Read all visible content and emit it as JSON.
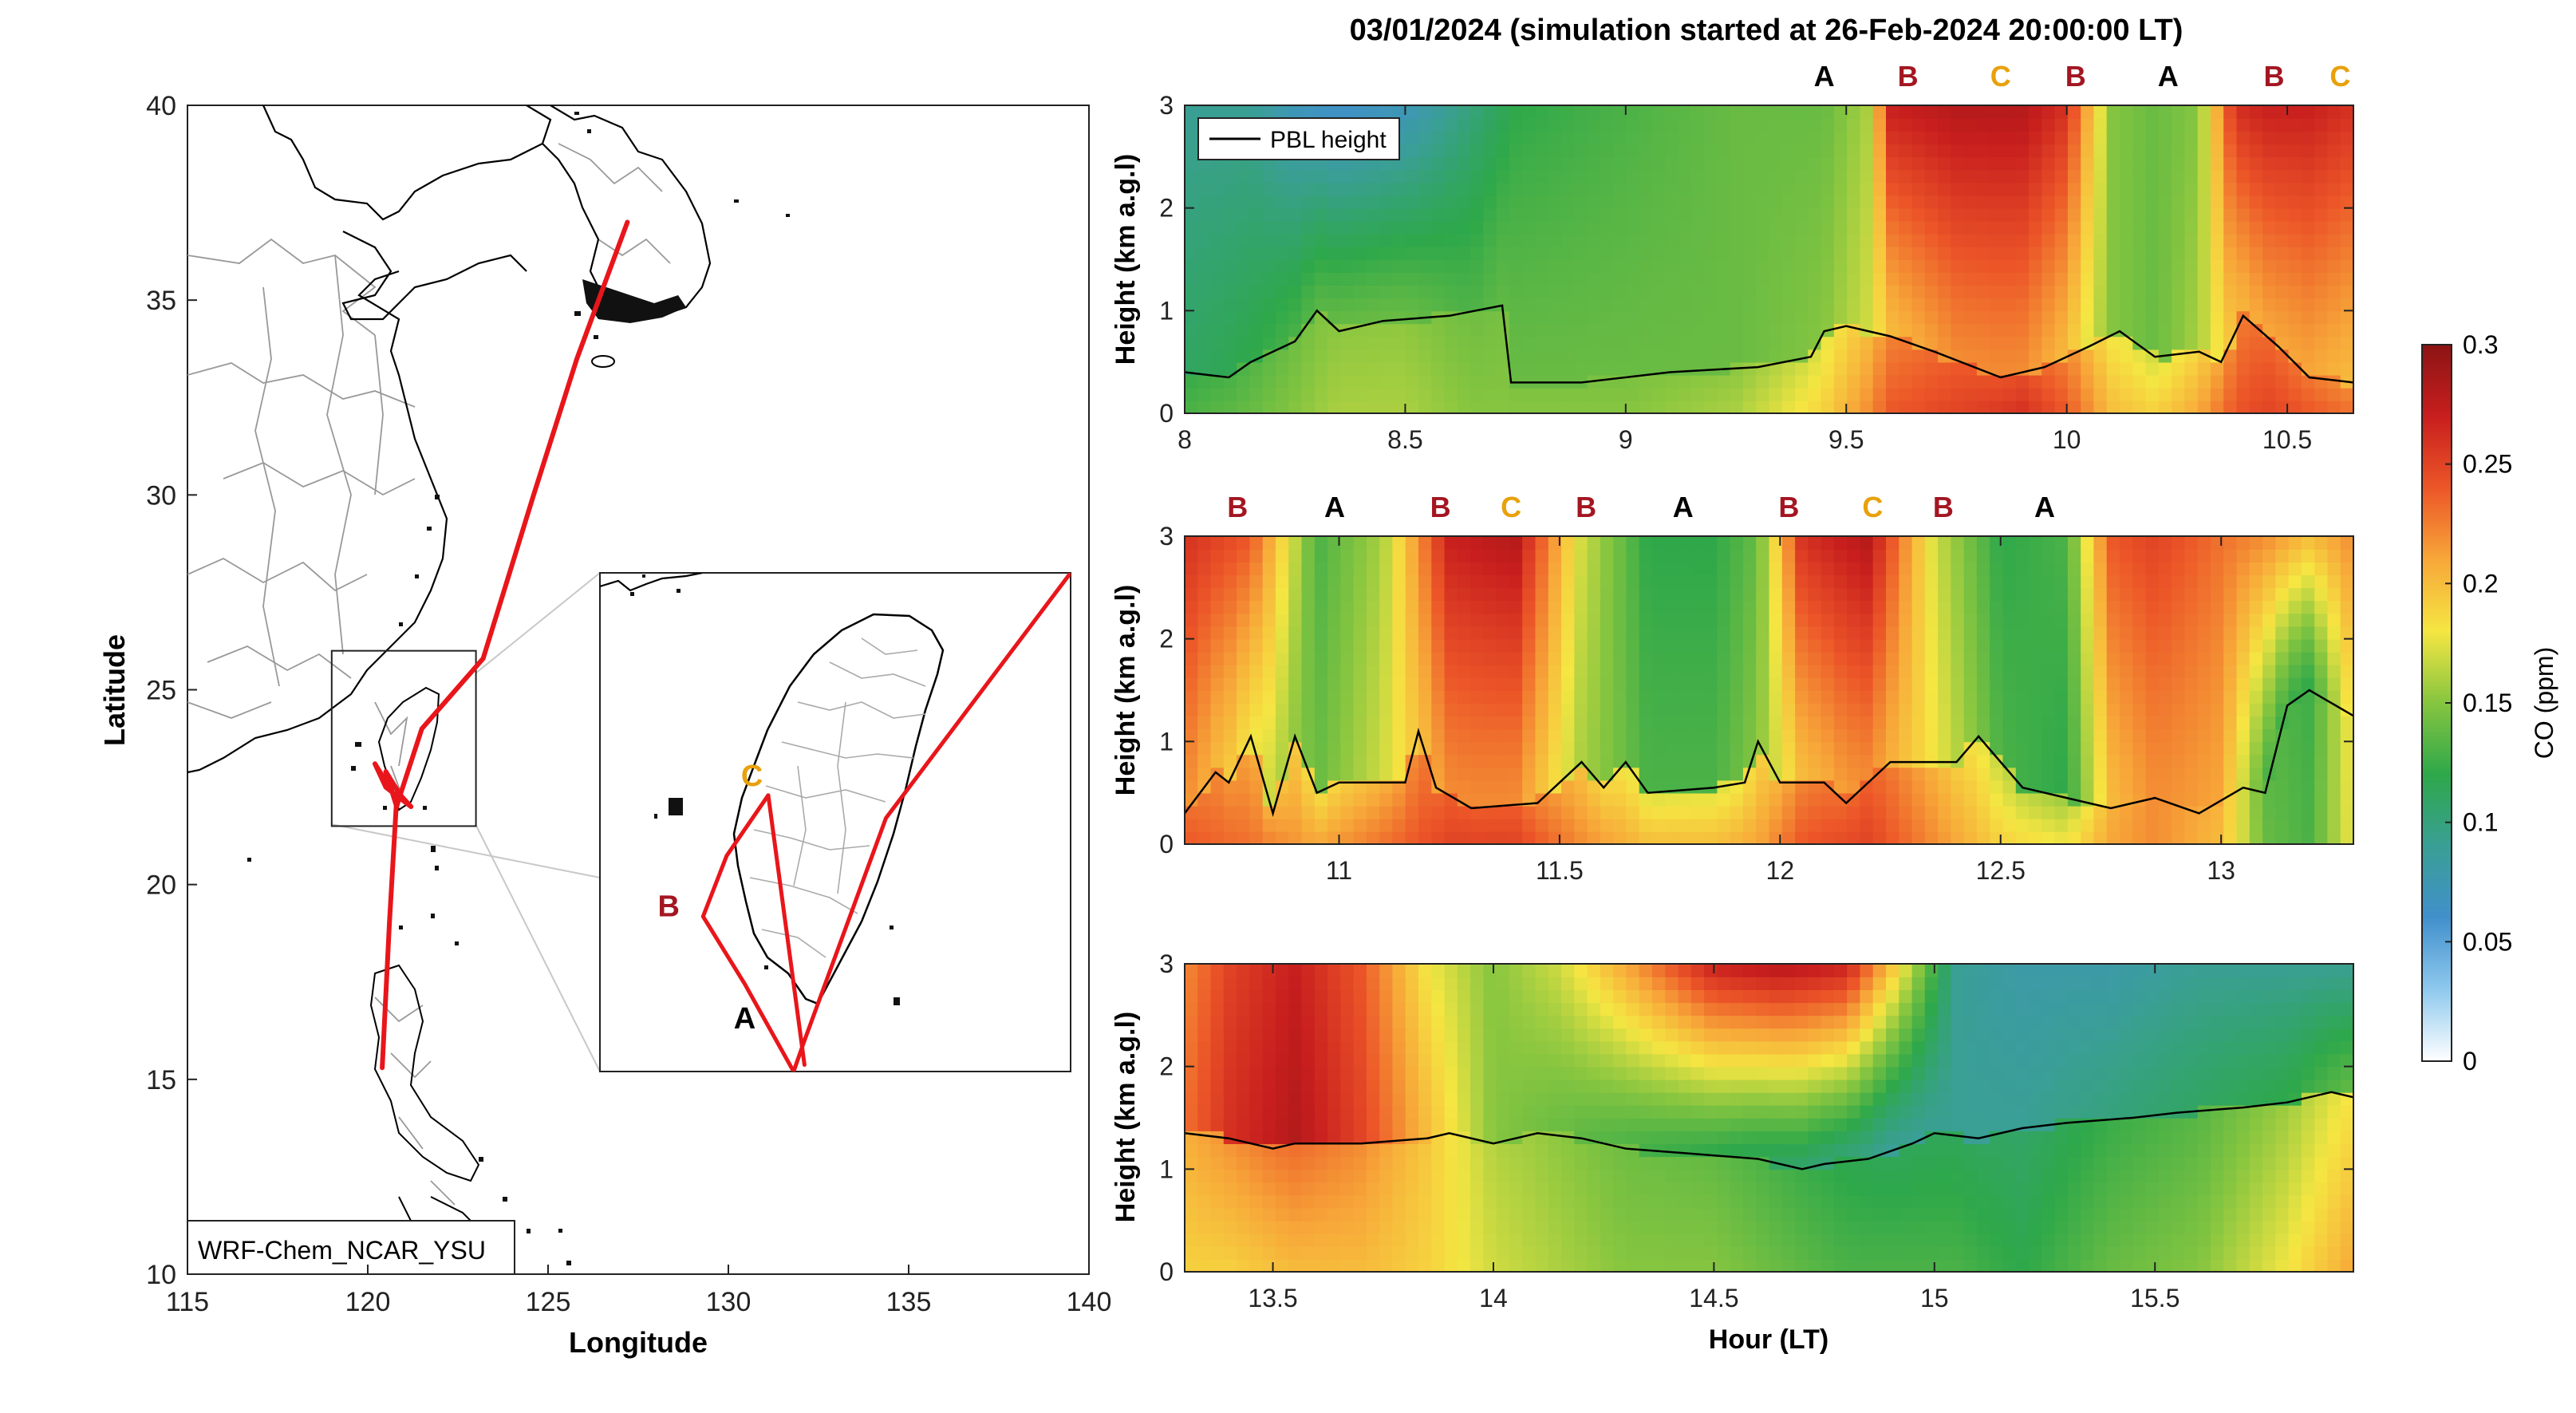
{
  "figure_title": "03/01/2024 (simulation started at 26-Feb-2024 20:00:00 LT)",
  "colors": {
    "track": "#e8161b",
    "label_A": "#000000",
    "label_B": "#a31621",
    "label_C": "#e8a10c",
    "coast": "#000000",
    "borders": "#999999"
  },
  "chart_data": [
    {
      "type": "line",
      "id": "map",
      "xlabel": "Longitude",
      "ylabel": "Latitude",
      "xlim": [
        115,
        140
      ],
      "ylim": [
        10,
        40
      ],
      "xticks": [
        115,
        120,
        125,
        130,
        135,
        140
      ],
      "yticks": [
        10,
        15,
        20,
        25,
        30,
        35,
        40
      ],
      "model_label": "WRF-Chem_NCAR_YSU",
      "inset_box": {
        "lon": [
          119,
          123
        ],
        "lat": [
          21.5,
          26
        ]
      },
      "track": {
        "lon": [
          127.2,
          125.8,
          124.6,
          123.2,
          121.5,
          120.9,
          120.8,
          120.5,
          120.9,
          121.2,
          120.5,
          120.2,
          120.8,
          120.6,
          120.4
        ],
        "lat": [
          37.0,
          33.5,
          30.0,
          25.8,
          24.0,
          22.3,
          22.0,
          22.9,
          22.3,
          22.0,
          22.5,
          23.1,
          22.2,
          19.0,
          15.3
        ]
      },
      "inset": {
        "xlim": [
          119.8,
          122.4
        ],
        "ylim": [
          21.8,
          25.5
        ],
        "track": {
          "lon": [
            122.4,
            121.38,
            120.93,
            120.87,
            120.6,
            120.37,
            120.5,
            120.73,
            120.88,
            120.93
          ],
          "lat": [
            25.5,
            23.68,
            22.03,
            21.8,
            22.45,
            22.95,
            23.4,
            23.85,
            22.35,
            21.85
          ]
        },
        "point_labels": [
          {
            "text": "C",
            "lon": 120.64,
            "lat": 23.92
          },
          {
            "text": "B",
            "lon": 120.18,
            "lat": 22.95
          },
          {
            "text": "A",
            "lon": 120.6,
            "lat": 22.12
          }
        ]
      }
    },
    {
      "type": "heatmap",
      "id": "panel1",
      "ylabel": "Height (km a.g.l)",
      "xlim": [
        8,
        10.65
      ],
      "ylim": [
        0,
        3
      ],
      "xticks": [
        8,
        8.5,
        9,
        9.5,
        10,
        10.5
      ],
      "yticks": [
        0,
        1,
        2,
        3
      ],
      "legend": "PBL height",
      "legend_position": "top-left",
      "co_profiles": {
        "hours": [
          8.0,
          8.15,
          8.25,
          8.35,
          8.5,
          8.65,
          8.75,
          9.0,
          9.25,
          9.45,
          9.55,
          9.6,
          9.75,
          9.9,
          10.0,
          10.1,
          10.2,
          10.3,
          10.38,
          10.45,
          10.55,
          10.65
        ],
        "surface": [
          0.13,
          0.14,
          0.15,
          0.16,
          0.16,
          0.15,
          0.15,
          0.15,
          0.16,
          0.19,
          0.22,
          0.24,
          0.25,
          0.26,
          0.24,
          0.2,
          0.19,
          0.21,
          0.24,
          0.25,
          0.24,
          0.23
        ],
        "mid": [
          0.11,
          0.12,
          0.13,
          0.14,
          0.14,
          0.13,
          0.14,
          0.14,
          0.14,
          0.15,
          0.17,
          0.2,
          0.22,
          0.22,
          0.2,
          0.15,
          0.14,
          0.16,
          0.2,
          0.21,
          0.21,
          0.2
        ],
        "top": [
          0.09,
          0.09,
          0.07,
          0.06,
          0.07,
          0.1,
          0.12,
          0.13,
          0.14,
          0.14,
          0.16,
          0.27,
          0.28,
          0.28,
          0.26,
          0.15,
          0.14,
          0.15,
          0.26,
          0.27,
          0.27,
          0.26
        ]
      },
      "pbl": {
        "x": [
          8.0,
          8.1,
          8.15,
          8.25,
          8.3,
          8.35,
          8.45,
          8.6,
          8.72,
          8.74,
          8.9,
          9.1,
          9.3,
          9.42,
          9.45,
          9.5,
          9.6,
          9.7,
          9.85,
          9.95,
          10.05,
          10.12,
          10.2,
          10.3,
          10.35,
          10.4,
          10.48,
          10.55,
          10.65
        ],
        "y": [
          0.4,
          0.35,
          0.5,
          0.7,
          1.0,
          0.8,
          0.9,
          0.95,
          1.05,
          0.3,
          0.3,
          0.4,
          0.45,
          0.55,
          0.8,
          0.85,
          0.75,
          0.6,
          0.35,
          0.45,
          0.65,
          0.8,
          0.55,
          0.6,
          0.5,
          0.95,
          0.65,
          0.35,
          0.3
        ]
      },
      "labels": [
        {
          "text": "A",
          "x": 9.45
        },
        {
          "text": "B",
          "x": 9.64
        },
        {
          "text": "C",
          "x": 9.85
        },
        {
          "text": "B",
          "x": 10.02
        },
        {
          "text": "A",
          "x": 10.23
        },
        {
          "text": "B",
          "x": 10.47
        },
        {
          "text": "C",
          "x": 10.62
        }
      ]
    },
    {
      "type": "heatmap",
      "id": "panel2",
      "ylabel": "Height (km a.g.l)",
      "xlim": [
        10.65,
        13.3
      ],
      "ylim": [
        0,
        3
      ],
      "xticks": [
        11,
        11.5,
        12,
        12.5,
        13
      ],
      "yticks": [
        0,
        1,
        2,
        3
      ],
      "co_profiles": {
        "hours": [
          10.65,
          10.8,
          10.95,
          11.1,
          11.25,
          11.4,
          11.55,
          11.7,
          11.85,
          11.95,
          12.05,
          12.2,
          12.35,
          12.5,
          12.65,
          12.75,
          12.85,
          13.0,
          13.1,
          13.2,
          13.3
        ],
        "surface": [
          0.24,
          0.23,
          0.21,
          0.23,
          0.25,
          0.25,
          0.22,
          0.2,
          0.2,
          0.21,
          0.24,
          0.25,
          0.22,
          0.19,
          0.18,
          0.21,
          0.22,
          0.2,
          0.14,
          0.13,
          0.18
        ],
        "mid": [
          0.22,
          0.18,
          0.14,
          0.17,
          0.22,
          0.22,
          0.16,
          0.13,
          0.13,
          0.15,
          0.2,
          0.22,
          0.18,
          0.13,
          0.12,
          0.2,
          0.22,
          0.21,
          0.13,
          0.12,
          0.19
        ],
        "top": [
          0.26,
          0.24,
          0.13,
          0.16,
          0.27,
          0.28,
          0.17,
          0.12,
          0.12,
          0.14,
          0.26,
          0.28,
          0.17,
          0.12,
          0.13,
          0.24,
          0.25,
          0.23,
          0.22,
          0.2,
          0.22
        ]
      },
      "pbl": {
        "x": [
          10.65,
          10.72,
          10.75,
          10.8,
          10.85,
          10.9,
          10.95,
          11.0,
          11.15,
          11.18,
          11.22,
          11.3,
          11.45,
          11.55,
          11.6,
          11.65,
          11.7,
          11.85,
          11.92,
          11.95,
          12.0,
          12.1,
          12.15,
          12.25,
          12.4,
          12.45,
          12.55,
          12.65,
          12.75,
          12.85,
          12.95,
          13.05,
          13.1,
          13.15,
          13.2,
          13.3
        ],
        "y": [
          0.3,
          0.7,
          0.6,
          1.05,
          0.3,
          1.05,
          0.5,
          0.6,
          0.6,
          1.1,
          0.55,
          0.35,
          0.4,
          0.8,
          0.55,
          0.8,
          0.5,
          0.55,
          0.6,
          1.0,
          0.6,
          0.6,
          0.4,
          0.8,
          0.8,
          1.05,
          0.55,
          0.45,
          0.35,
          0.45,
          0.3,
          0.55,
          0.5,
          1.35,
          1.5,
          1.25
        ]
      },
      "labels": [
        {
          "text": "B",
          "x": 10.77
        },
        {
          "text": "A",
          "x": 10.99
        },
        {
          "text": "B",
          "x": 11.23
        },
        {
          "text": "C",
          "x": 11.39
        },
        {
          "text": "B",
          "x": 11.56
        },
        {
          "text": "A",
          "x": 11.78
        },
        {
          "text": "B",
          "x": 12.02
        },
        {
          "text": "C",
          "x": 12.21
        },
        {
          "text": "B",
          "x": 12.37
        },
        {
          "text": "A",
          "x": 12.6
        }
      ]
    },
    {
      "type": "heatmap",
      "id": "panel3",
      "ylabel": "Height (km a.g.l)",
      "xlabel": "Hour (LT)",
      "xlim": [
        13.3,
        15.95
      ],
      "ylim": [
        0,
        3
      ],
      "xticks": [
        13.5,
        14,
        14.5,
        15,
        15.5
      ],
      "yticks": [
        0,
        1,
        2,
        3
      ],
      "co_profiles": {
        "hours": [
          13.3,
          13.4,
          13.55,
          13.7,
          13.85,
          14.0,
          14.15,
          14.3,
          14.5,
          14.65,
          14.8,
          14.9,
          15.05,
          15.2,
          15.4,
          15.6,
          15.8,
          15.95
        ],
        "surface": [
          0.19,
          0.19,
          0.2,
          0.2,
          0.19,
          0.17,
          0.16,
          0.15,
          0.15,
          0.14,
          0.13,
          0.13,
          0.13,
          0.12,
          0.14,
          0.15,
          0.18,
          0.21
        ],
        "mid": [
          0.23,
          0.26,
          0.28,
          0.25,
          0.2,
          0.15,
          0.14,
          0.13,
          0.12,
          0.11,
          0.1,
          0.09,
          0.09,
          0.09,
          0.1,
          0.11,
          0.12,
          0.14
        ],
        "top": [
          0.22,
          0.25,
          0.27,
          0.24,
          0.18,
          0.15,
          0.17,
          0.21,
          0.27,
          0.28,
          0.27,
          0.2,
          0.09,
          0.08,
          0.08,
          0.09,
          0.09,
          0.09
        ]
      },
      "pbl": {
        "x": [
          13.3,
          13.4,
          13.5,
          13.55,
          13.7,
          13.85,
          13.9,
          14.0,
          14.1,
          14.2,
          14.3,
          14.45,
          14.6,
          14.7,
          14.75,
          14.85,
          14.95,
          15.0,
          15.1,
          15.2,
          15.3,
          15.45,
          15.55,
          15.7,
          15.8,
          15.9,
          15.95
        ],
        "y": [
          1.35,
          1.3,
          1.2,
          1.25,
          1.25,
          1.3,
          1.35,
          1.25,
          1.35,
          1.3,
          1.2,
          1.15,
          1.1,
          1.0,
          1.05,
          1.1,
          1.25,
          1.35,
          1.3,
          1.4,
          1.45,
          1.5,
          1.55,
          1.6,
          1.65,
          1.75,
          1.7
        ]
      },
      "labels": []
    }
  ],
  "colorbar": {
    "label": "CO (ppm)",
    "range": [
      0,
      0.3
    ],
    "ticks": [
      0,
      0.05,
      0.1,
      0.15,
      0.2,
      0.25,
      0.3
    ],
    "stops": [
      "#ffffff",
      "#8fc9ee",
      "#4190cc",
      "#3a9f95",
      "#2ea84a",
      "#86c540",
      "#f5e642",
      "#f7a739",
      "#ec5628",
      "#c81e1e",
      "#8c1414"
    ]
  }
}
